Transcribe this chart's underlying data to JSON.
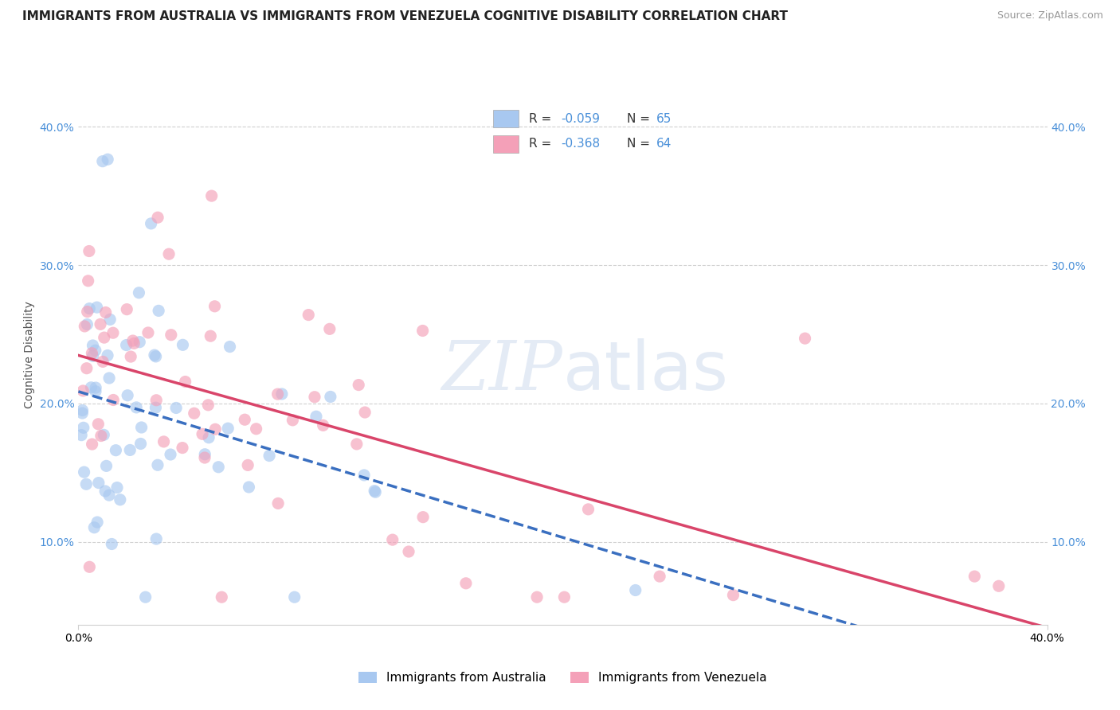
{
  "title": "IMMIGRANTS FROM AUSTRALIA VS IMMIGRANTS FROM VENEZUELA COGNITIVE DISABILITY CORRELATION CHART",
  "source": "Source: ZipAtlas.com",
  "ylabel": "Cognitive Disability",
  "xmin": 0.0,
  "xmax": 0.4,
  "ymin": 0.04,
  "ymax": 0.43,
  "yticks": [
    0.1,
    0.2,
    0.3,
    0.4
  ],
  "xtick_labels_show": false,
  "grid_color": "#d0d0d0",
  "background_color": "#ffffff",
  "watermark_text": "ZIPatlas",
  "series": [
    {
      "name": "Immigrants from Australia",
      "R": -0.059,
      "N": 65,
      "color": "#a8c8f0",
      "line_color": "#3a6fc0",
      "line_style": "--"
    },
    {
      "name": "Immigrants from Venezuela",
      "R": -0.368,
      "N": 64,
      "color": "#f4a0b8",
      "line_color": "#d9456a",
      "line_style": "-"
    }
  ],
  "title_fontsize": 11,
  "axis_label_fontsize": 10,
  "tick_fontsize": 10,
  "tick_color": "#4a90d9",
  "scatter_size": 120,
  "scatter_alpha": 0.65,
  "line_width": 2.5
}
